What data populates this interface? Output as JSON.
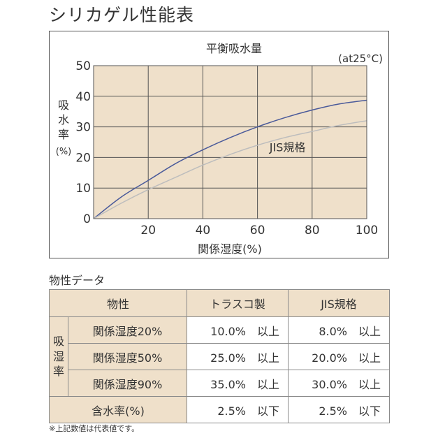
{
  "page_title": "シリカゲル性能表",
  "chart_data": {
    "type": "line",
    "title": "平衡吸水量",
    "note": "(at25°C)",
    "xlabel": "関係湿度(%)",
    "ylabel_chars": [
      "吸",
      "水",
      "率",
      "(%)"
    ],
    "xlim": [
      0,
      100
    ],
    "ylim": [
      0,
      50
    ],
    "x_ticks": [
      20,
      40,
      60,
      80,
      100
    ],
    "y_ticks": [
      0,
      10,
      20,
      30,
      40,
      50
    ],
    "grid": true,
    "background_color": "#efe0ca",
    "series": [
      {
        "color": "#4a5a9a",
        "points": [
          [
            0,
            0
          ],
          [
            10,
            7
          ],
          [
            20,
            12.5
          ],
          [
            30,
            18
          ],
          [
            40,
            22.5
          ],
          [
            50,
            26.5
          ],
          [
            60,
            30
          ],
          [
            70,
            33
          ],
          [
            80,
            35.5
          ],
          [
            90,
            37.5
          ],
          [
            100,
            38.7
          ]
        ]
      },
      {
        "name": "JIS規格",
        "color": "#bdbdbd",
        "points": [
          [
            0,
            0
          ],
          [
            10,
            5
          ],
          [
            20,
            9.5
          ],
          [
            30,
            13.5
          ],
          [
            40,
            17.5
          ],
          [
            50,
            21
          ],
          [
            60,
            24
          ],
          [
            70,
            26.5
          ],
          [
            80,
            28.5
          ],
          [
            90,
            30.5
          ],
          [
            100,
            32
          ]
        ]
      }
    ],
    "annotations": [
      {
        "text": "JIS規格",
        "x": 71,
        "y": 22
      }
    ]
  },
  "table": {
    "section_label": "物性データ",
    "headers": [
      "物性",
      "トラスコ製",
      "JIS規格"
    ],
    "category_chars": [
      "吸",
      "湿",
      "率"
    ],
    "rows": [
      {
        "label": "関係湿度20%",
        "trusco": "10.0%　以上",
        "jis": "8.0%　以上"
      },
      {
        "label": "関係湿度50%",
        "trusco": "25.0%　以上",
        "jis": "20.0%　以上"
      },
      {
        "label": "関係湿度90%",
        "trusco": "35.0%　以上",
        "jis": "30.0%　以上"
      }
    ],
    "moisture_row": {
      "label": "含水率(%)",
      "trusco": "2.5%　以下",
      "jis": "2.5%　以下"
    },
    "footnote": "※上記数値は代表値です。"
  }
}
